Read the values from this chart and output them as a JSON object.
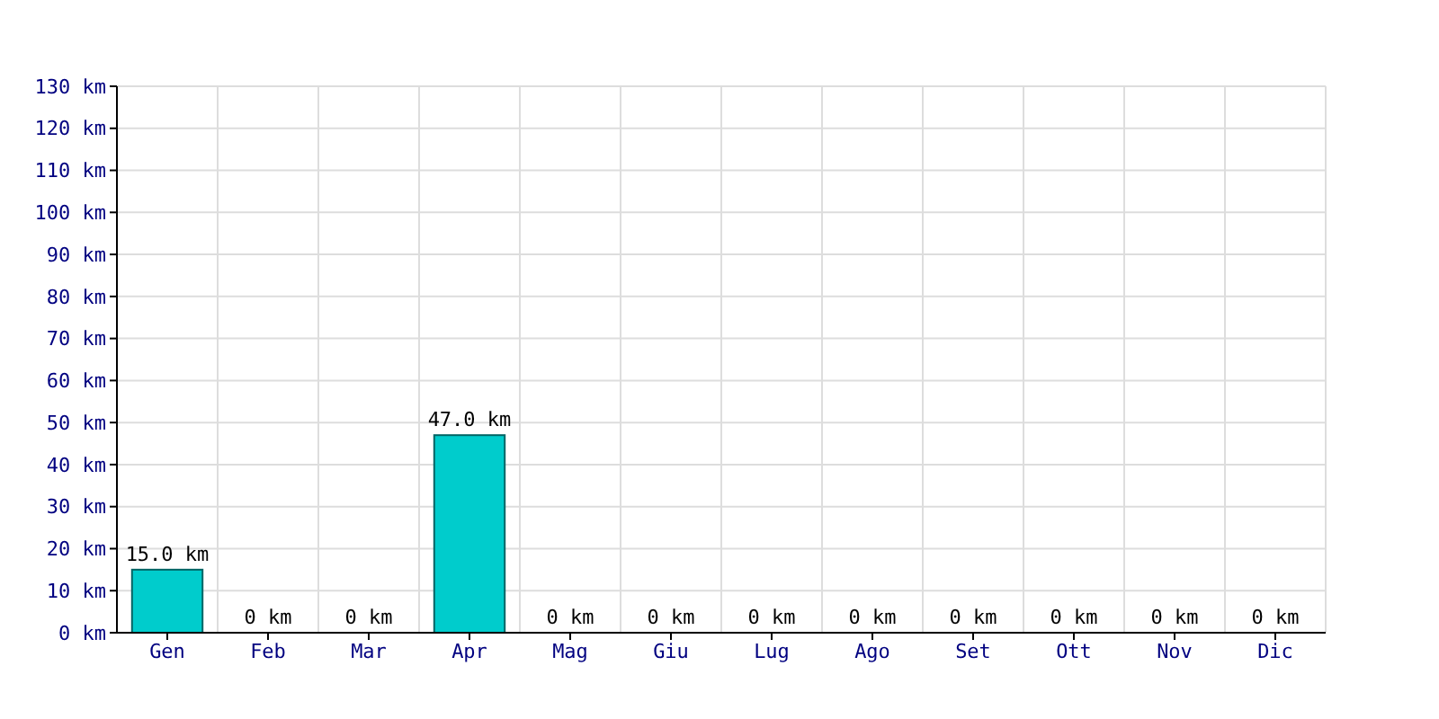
{
  "chart_data": {
    "type": "bar",
    "categories": [
      "Gen",
      "Feb",
      "Mar",
      "Apr",
      "Mag",
      "Giu",
      "Lug",
      "Ago",
      "Set",
      "Ott",
      "Nov",
      "Dic"
    ],
    "values": [
      15,
      0,
      0,
      47,
      0,
      0,
      0,
      0,
      0,
      0,
      0,
      0
    ],
    "value_labels": [
      "15.0 km",
      "0 km",
      "0 km",
      "47.0 km",
      "0 km",
      "0 km",
      "0 km",
      "0 km",
      "0 km",
      "0 km",
      "0 km",
      "0 km"
    ],
    "color": "#00cccc",
    "ylim": [
      0,
      130
    ],
    "yticks": [
      {
        "value": 0,
        "label": "0 km"
      },
      {
        "value": 10,
        "label": "10 km"
      },
      {
        "value": 20,
        "label": "20 km"
      },
      {
        "value": 30,
        "label": "30 km"
      },
      {
        "value": 40,
        "label": "40 km"
      },
      {
        "value": 50,
        "label": "50 km"
      },
      {
        "value": 60,
        "label": "60 km"
      },
      {
        "value": 70,
        "label": "70 km"
      },
      {
        "value": 80,
        "label": "80 km"
      },
      {
        "value": 90,
        "label": "90 km"
      },
      {
        "value": 100,
        "label": "100 km"
      },
      {
        "value": 110,
        "label": "110 km"
      },
      {
        "value": 120,
        "label": "120 km"
      },
      {
        "value": 130,
        "label": "130 km"
      }
    ],
    "grid": true
  }
}
